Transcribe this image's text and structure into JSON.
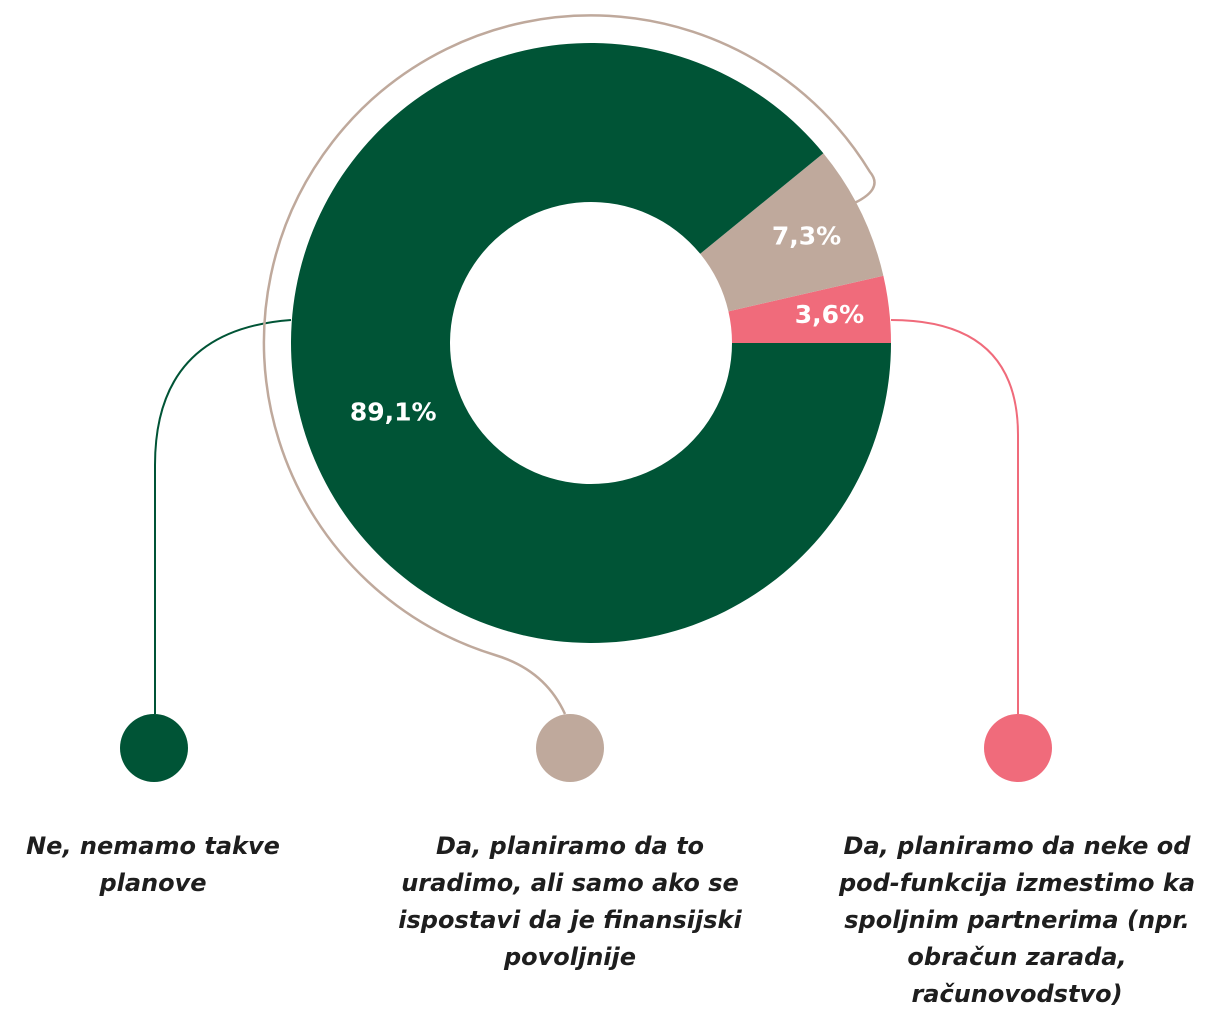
{
  "chart_data": {
    "type": "donut",
    "categories": [
      "Da, planiramo da neke od pod-funkcija izmestimo ka spoljnim partnerima (npr. obračun zarada, računovodstvo)",
      "Da, planiramo da to uradimo, ali samo ako se ispostavi da je finansijski povoljnije",
      "Ne, nemamo takve planove"
    ],
    "values": [
      3.6,
      7.3,
      89.1
    ],
    "value_labels": [
      "3,6%",
      "7,3%",
      "89,1%"
    ],
    "colors": [
      "#f06b7b",
      "#bfa99c",
      "#005436"
    ]
  }
}
